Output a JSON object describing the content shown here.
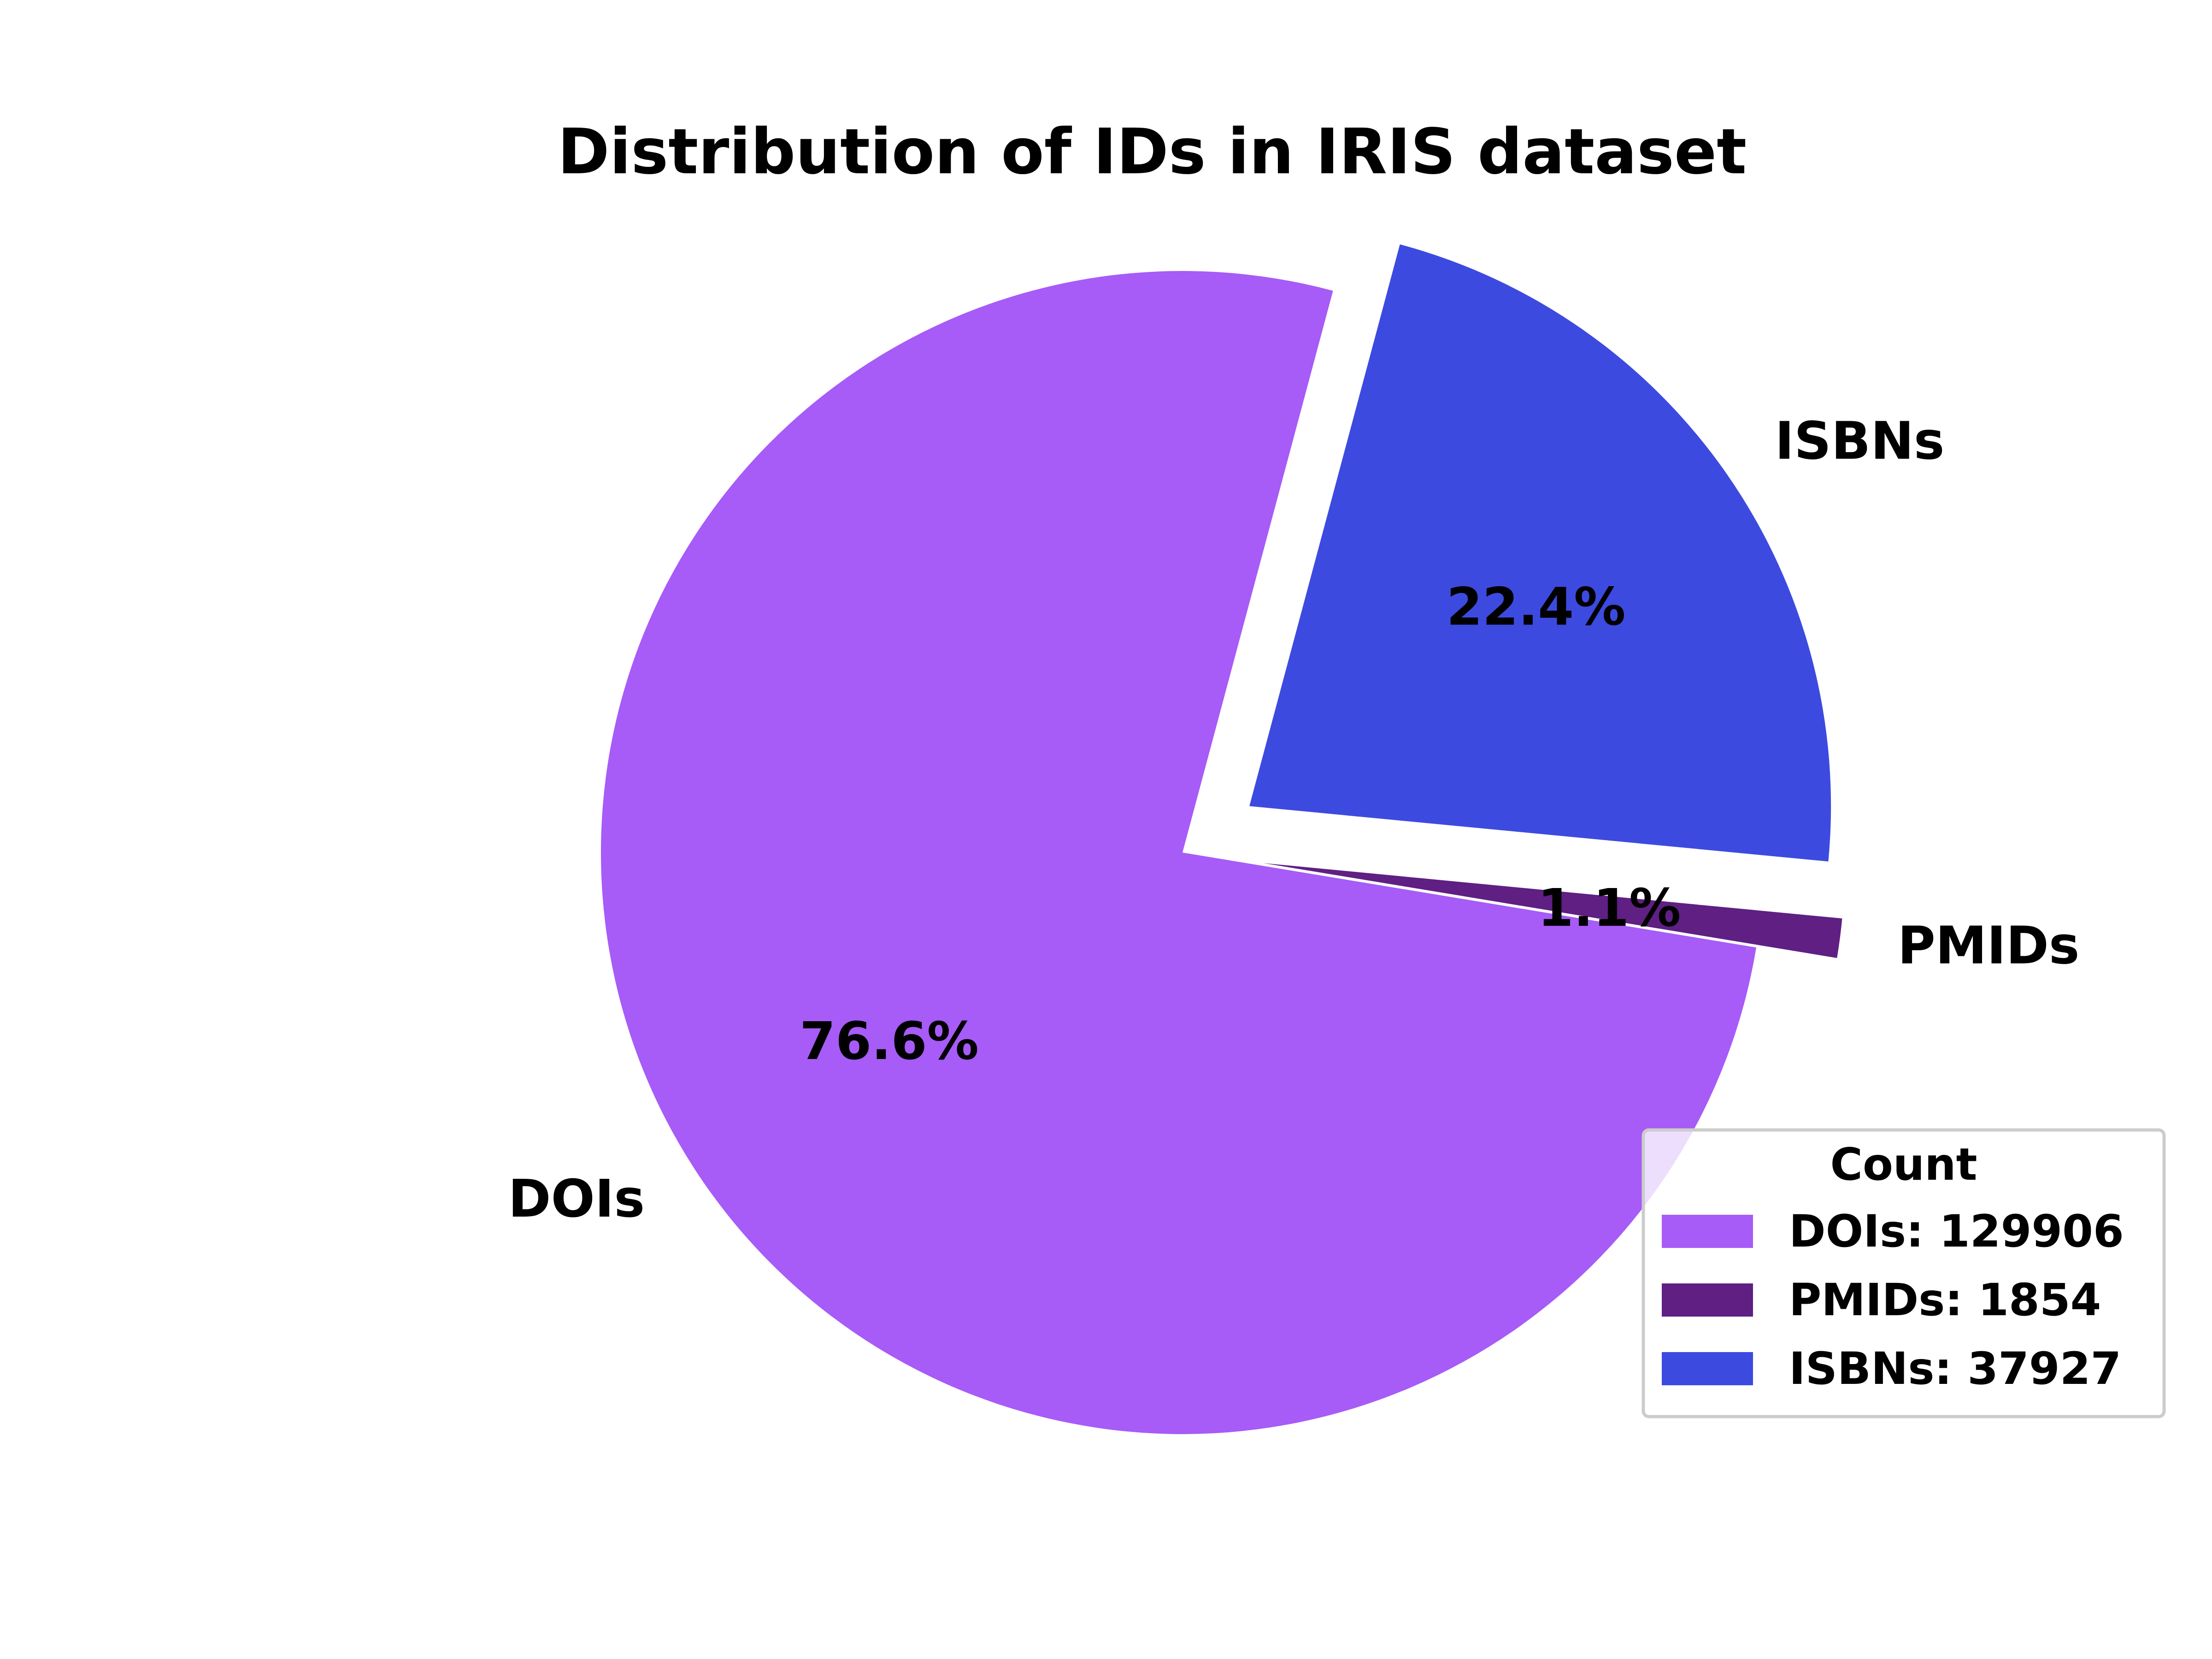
{
  "chart_data": {
    "type": "pie",
    "title": "Distribution of IDs in IRIS dataset",
    "slices": [
      {
        "name": "DOIs",
        "value": 129906,
        "pct_label": "76.6%",
        "color": "#a75bf7",
        "exploded": false
      },
      {
        "name": "PMIDs",
        "value": 1854,
        "pct_label": "1.1%",
        "color": "#5f1f83",
        "exploded": true
      },
      {
        "name": "ISBNs",
        "value": 37927,
        "pct_label": "22.4%",
        "color": "#3d4ae0",
        "exploded": true
      }
    ],
    "legend": {
      "title": "Count",
      "placement": "lower-right",
      "entries": [
        "DOIs: 129906",
        "PMIDs: 1854",
        "ISBNs: 37927"
      ]
    }
  }
}
